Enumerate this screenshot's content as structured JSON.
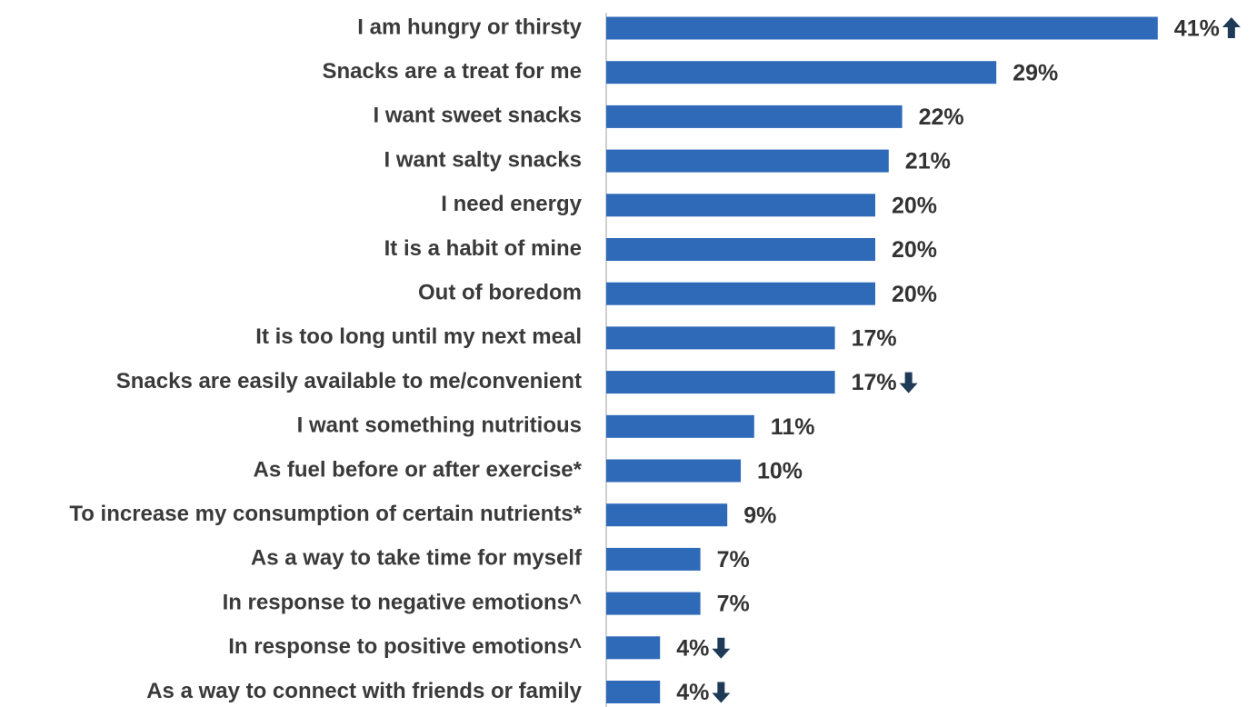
{
  "chart_data": {
    "type": "bar",
    "orientation": "horizontal",
    "categories": [
      "I am hungry or thirsty",
      "Snacks are a treat for me",
      "I want sweet snacks",
      "I want salty snacks",
      "I need energy",
      "It is a habit of mine",
      "Out of boredom",
      "It is too long until my next meal",
      "Snacks are easily available to me/convenient",
      "I want something nutritious",
      "As fuel before or after exercise*",
      "To increase my consumption of certain nutrients*",
      "As a way to take time for myself",
      "In response to negative emotions^",
      "In response to positive emotions^",
      "As a way to connect with friends or family"
    ],
    "values": [
      41,
      29,
      22,
      21,
      20,
      20,
      20,
      17,
      17,
      11,
      10,
      9,
      7,
      7,
      4,
      4
    ],
    "value_labels": [
      "41%",
      "29%",
      "22%",
      "21%",
      "20%",
      "20%",
      "20%",
      "17%",
      "17%",
      "11%",
      "10%",
      "9%",
      "7%",
      "7%",
      "4%",
      "4%"
    ],
    "arrows": [
      "up",
      null,
      null,
      null,
      null,
      null,
      null,
      null,
      "down",
      null,
      null,
      null,
      null,
      null,
      "down",
      "down"
    ],
    "color": "#2f6ab8",
    "arrow_color": "#1f3a56"
  }
}
